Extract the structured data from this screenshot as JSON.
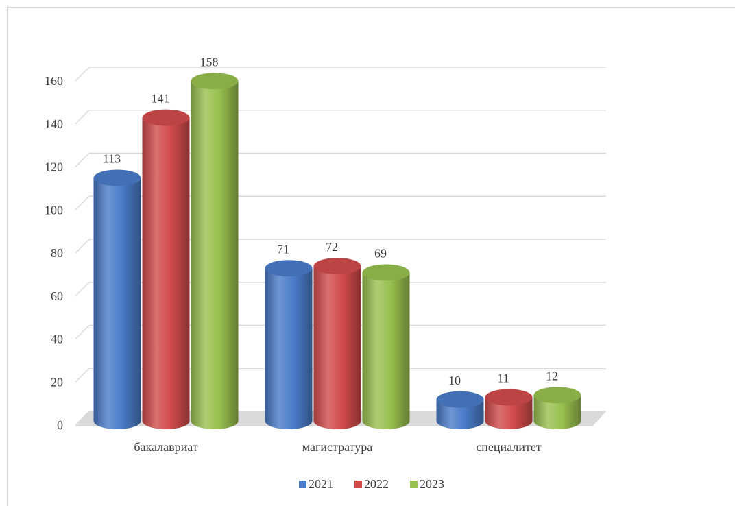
{
  "chart_data": {
    "type": "bar3d",
    "categories": [
      "бакалавриат",
      "магистратура",
      "специалитет"
    ],
    "series": [
      {
        "name": "2021",
        "color": "#4a7cc9",
        "values": [
          113,
          71,
          10
        ]
      },
      {
        "name": "2022",
        "color": "#d24b4b",
        "values": [
          141,
          72,
          11
        ]
      },
      {
        "name": "2023",
        "color": "#98c04f",
        "values": [
          158,
          69,
          12
        ]
      }
    ],
    "ylim": [
      0,
      160
    ],
    "yticks": [
      0,
      20,
      40,
      60,
      80,
      100,
      120,
      140,
      160
    ],
    "grid": true,
    "legend": "bottom"
  }
}
